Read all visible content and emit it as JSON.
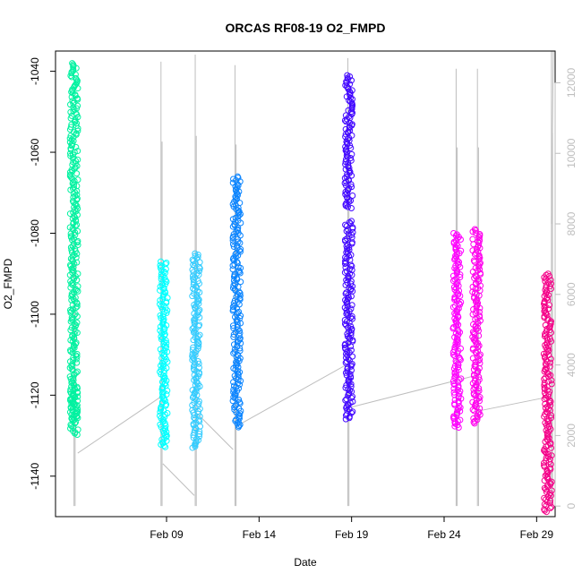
{
  "chart_data": {
    "type": "scatter",
    "title": "ORCAS RF08-19 O2_FMPD",
    "xlabel": "Date",
    "ylabel": "O2_FMPD",
    "xlim": [
      "2016-02-03",
      "2016-03-01"
    ],
    "ylim": [
      -1150,
      -1035
    ],
    "y2lim": [
      -300,
      12900
    ],
    "x_ticks": [
      {
        "date": "2016-02-09",
        "label": "Feb 09"
      },
      {
        "date": "2016-02-14",
        "label": "Feb 14"
      },
      {
        "date": "2016-02-19",
        "label": "Feb 19"
      },
      {
        "date": "2016-02-24",
        "label": "Feb 24"
      },
      {
        "date": "2016-02-29",
        "label": "Feb 29"
      }
    ],
    "y_ticks": [
      -1040,
      -1060,
      -1080,
      -1100,
      -1120,
      -1140
    ],
    "y2_ticks": [
      0,
      2000,
      4000,
      6000,
      8000,
      10000,
      12000
    ],
    "grid": false,
    "series": [
      {
        "date": "2016-02-04",
        "color": "#00F2A0",
        "clusters": [
          {
            "y_min": -1130,
            "y_max": -1118
          },
          {
            "y_min": -1126,
            "y_max": -1038
          }
        ]
      },
      {
        "date": "2016-02-08.85",
        "color": "#00FFFF",
        "clusters": [
          {
            "y_min": -1133,
            "y_max": -1087
          }
        ]
      },
      {
        "date": "2016-02-10.6",
        "color": "#33CCFF",
        "clusters": [
          {
            "y_min": -1133,
            "y_max": -1085
          }
        ]
      },
      {
        "date": "2016-02-12.8",
        "color": "#0A84FF",
        "clusters": [
          {
            "y_min": -1128,
            "y_max": -1066
          }
        ]
      },
      {
        "date": "2016-02-18.85",
        "color": "#4208FF",
        "clusters": [
          {
            "y_min": -1126,
            "y_max": -1077
          },
          {
            "y_min": -1074,
            "y_max": -1041
          }
        ]
      },
      {
        "date": "2016-02-24.7",
        "color": "#FF00FF",
        "clusters": [
          {
            "y_min": -1128,
            "y_max": -1080
          }
        ]
      },
      {
        "date": "2016-02-25.75",
        "color": "#FF00EE",
        "clusters": [
          {
            "y_min": -1127,
            "y_max": -1079
          }
        ]
      },
      {
        "date": "2016-02-29.6",
        "color": "#F40088",
        "clusters": [
          {
            "y_min": -1149,
            "y_max": -1090
          }
        ]
      }
    ],
    "altitude_line_color": "#BEBEBE"
  }
}
